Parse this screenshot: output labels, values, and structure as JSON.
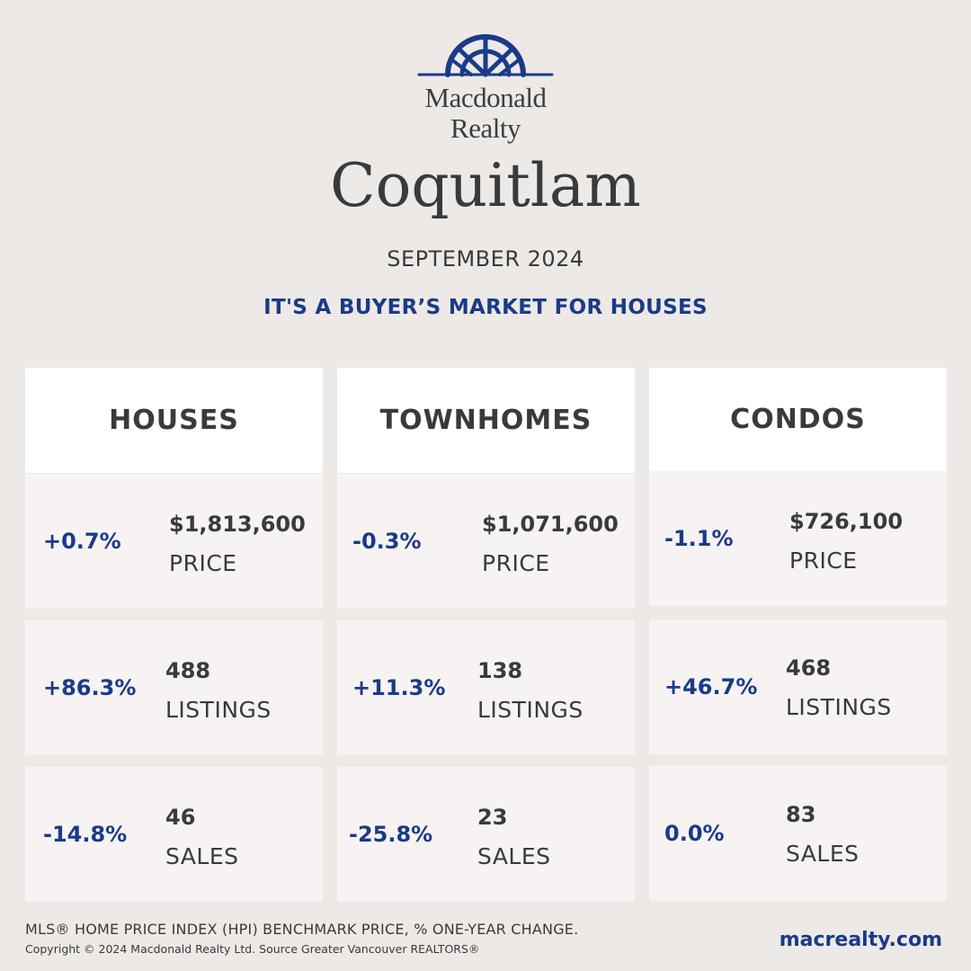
{
  "brand": {
    "logo_line1": "Macdonald",
    "logo_line2": "Realty",
    "color": "#1a3a8a",
    "logo_icon": "sunrise-arch-logo-icon"
  },
  "city": "Coquitlam",
  "period": "SEPTEMBER 2024",
  "headline": "IT'S A BUYER’S MARKET FOR HOUSES",
  "columns": [
    {
      "title": "HOUSES",
      "price": {
        "change": "+0.7%",
        "value": "$1,813,600",
        "label": "PRICE"
      },
      "listings": {
        "change": "+86.3%",
        "value": "488",
        "label": "LISTINGS"
      },
      "sales": {
        "change": "-14.8%",
        "value": "46",
        "label": "SALES"
      }
    },
    {
      "title": "TOWNHOMES",
      "price": {
        "change": "-0.3%",
        "value": "$1,071,600",
        "label": "PRICE"
      },
      "listings": {
        "change": "+11.3%",
        "value": "138",
        "label": "LISTINGS"
      },
      "sales": {
        "change": "-25.8%",
        "value": "23",
        "label": "SALES"
      }
    },
    {
      "title": "CONDOS",
      "price": {
        "change": "-1.1%",
        "value": "$726,100",
        "label": "PRICE"
      },
      "listings": {
        "change": "+46.7%",
        "value": "468",
        "label": "LISTINGS"
      },
      "sales": {
        "change": "0.0%",
        "value": "83",
        "label": "SALES"
      }
    }
  ],
  "footer": {
    "note": "MLS® HOME PRICE INDEX (HPI) BENCHMARK PRICE, % ONE-YEAR CHANGE.",
    "copyright": "Copyright © 2024 Macdonald Realty Ltd. Source Greater Vancouver REALTORS®",
    "website": "macrealty.com"
  }
}
